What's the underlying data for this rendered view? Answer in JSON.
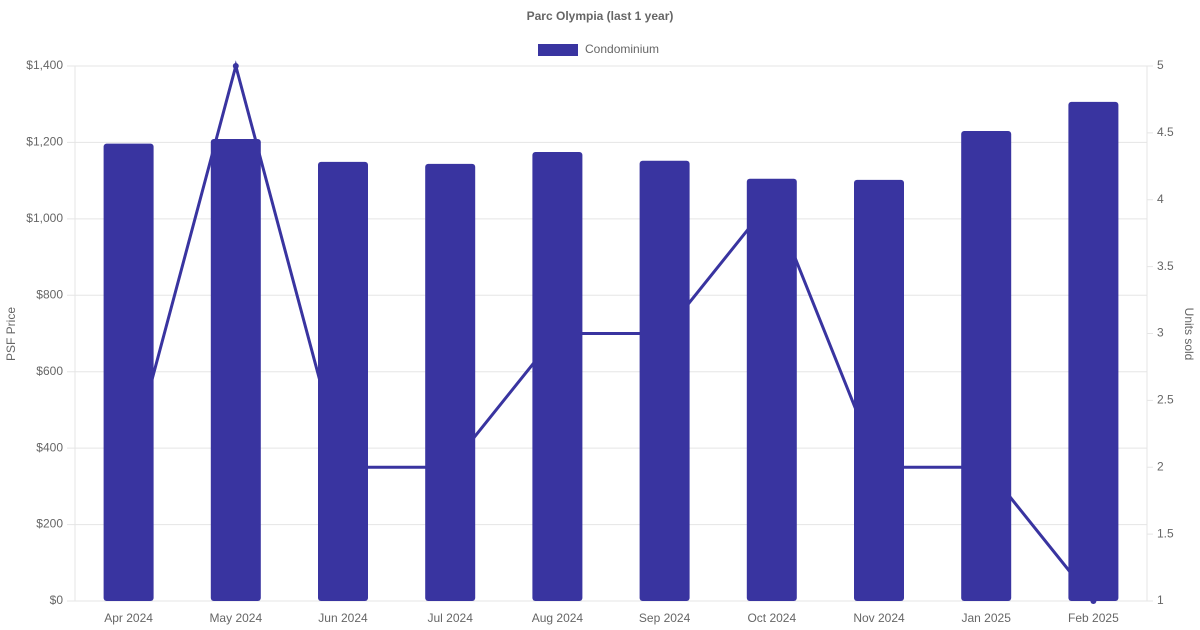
{
  "chart_data": {
    "type": "bar",
    "title": "Parc Olympia (last 1 year)",
    "y_label": "PSF Price",
    "y2_label": "Units sold",
    "categories": [
      "Apr 2024",
      "May 2024",
      "Jun 2024",
      "Jul 2024",
      "Aug 2024",
      "Sep 2024",
      "Oct 2024",
      "Nov 2024",
      "Jan 2025",
      "Feb 2025"
    ],
    "series": [
      {
        "name": "Condominium",
        "type": "bar",
        "color": "#3934a0",
        "values": [
          1197,
          1209,
          1149,
          1144,
          1175,
          1152,
          1105,
          1102,
          1230,
          1306
        ]
      },
      {
        "type": "line",
        "axis": "y2",
        "color": "#3934a0",
        "values": [
          2,
          5,
          2,
          2,
          3,
          3,
          4,
          2,
          2,
          1
        ]
      }
    ],
    "ylim": [
      0,
      1400
    ],
    "yticks": [
      {
        "value": 0,
        "label": "$0"
      },
      {
        "value": 200,
        "label": "$200"
      },
      {
        "value": 400,
        "label": "$400"
      },
      {
        "value": 600,
        "label": "$600"
      },
      {
        "value": 800,
        "label": "$800"
      },
      {
        "value": 1000,
        "label": "$1,000"
      },
      {
        "value": 1200,
        "label": "$1,200"
      },
      {
        "value": 1400,
        "label": "$1,400"
      }
    ],
    "y2lim": [
      1,
      5
    ],
    "y2ticks": [
      1,
      1.5,
      2,
      2.5,
      3,
      3.5,
      4,
      4.5,
      5
    ],
    "grid": true,
    "legend": "top"
  }
}
